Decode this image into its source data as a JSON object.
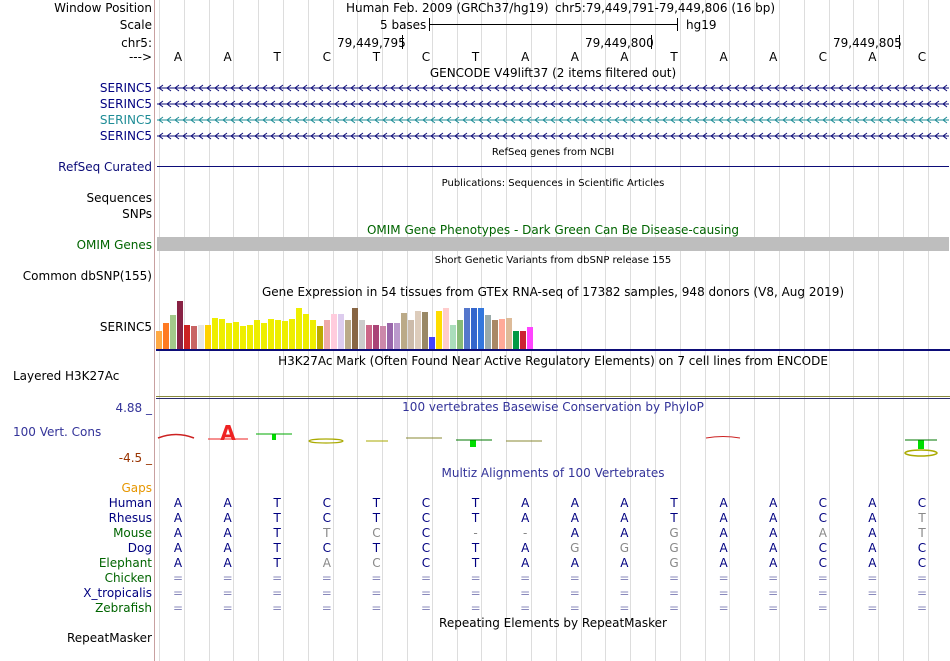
{
  "labels": {
    "window_position": "Window Position",
    "scale": "Scale",
    "chrom": "chr5:",
    "arrow": "--->",
    "serinc5_1": "SERINC5",
    "serinc5_2": "SERINC5",
    "serinc5_3": "SERINC5",
    "serinc5_4": "SERINC5",
    "refseq": "RefSeq Curated",
    "sequences": "Sequences",
    "snps": "SNPs",
    "omim": "OMIM Genes",
    "dbsnp": "Common dbSNP(155)",
    "gtex": "SERINC5",
    "h3k27ac": "Layered H3K27Ac",
    "cons_max": "4.88 _",
    "cons": "100 Vert. Cons",
    "cons_min": "-4.5 _",
    "gaps": "Gaps",
    "repeatmasker": "RepeatMasker"
  },
  "header": {
    "assembly": "Human Feb. 2009 (GRCh37/hg19)",
    "position": "chr5:79,449,791-79,449,806 (16 bp)",
    "scale_bases": "5 bases",
    "scale_db": "hg19",
    "coord1": "79,449,795",
    "coord2": "79,449,800",
    "coord3": "79,449,805"
  },
  "bases": [
    "A",
    "A",
    "T",
    "C",
    "T",
    "C",
    "T",
    "A",
    "A",
    "A",
    "T",
    "A",
    "A",
    "C",
    "A",
    "C"
  ],
  "track_titles": {
    "gencode": "GENCODE V49lift37 (2 items filtered out)",
    "refseq": "RefSeq genes from NCBI",
    "publications": "Publications: Sequences in Scientific Articles",
    "omim": "OMIM Gene Phenotypes - Dark Green Can Be Disease-causing",
    "dbsnp": "Short Genetic Variants from dbSNP release 155",
    "gtex": "Gene Expression in 54 tissues from GTEx RNA-seq of 17382 samples, 948 donors (V8, Aug 2019)",
    "h3k27ac": "H3K27Ac Mark (Often Found Near Active Regulatory Elements) on 7 cell lines from ENCODE",
    "phylop": "100 vertebrates Basewise Conservation by PhyloP",
    "multiz": "Multiz Alignments of 100 Vertebrates",
    "repeatmasker": "Repeating Elements by RepeatMasker"
  },
  "species": [
    {
      "name": "Human",
      "color": "#000080",
      "bases": [
        "A",
        "A",
        "T",
        "C",
        "T",
        "C",
        "T",
        "A",
        "A",
        "A",
        "T",
        "A",
        "A",
        "C",
        "A",
        "C"
      ]
    },
    {
      "name": "Rhesus",
      "color": "#000080",
      "bases": [
        "A",
        "A",
        "T",
        "C",
        "T",
        "C",
        "T",
        "A",
        "A",
        "A",
        "T",
        "A",
        "A",
        "C",
        "A",
        "T"
      ]
    },
    {
      "name": "Mouse",
      "color": "#006400",
      "bases": [
        "A",
        "A",
        "T",
        "T",
        "C",
        "C",
        "-",
        "-",
        "A",
        "A",
        "G",
        "A",
        "A",
        "A",
        "A",
        "T"
      ]
    },
    {
      "name": "Dog",
      "color": "#000080",
      "bases": [
        "A",
        "A",
        "T",
        "C",
        "T",
        "C",
        "T",
        "A",
        "G",
        "G",
        "G",
        "A",
        "A",
        "C",
        "A",
        "C"
      ]
    },
    {
      "name": "Elephant",
      "color": "#006400",
      "bases": [
        "A",
        "A",
        "T",
        "A",
        "C",
        "C",
        "T",
        "A",
        "A",
        "A",
        "G",
        "A",
        "A",
        "C",
        "A",
        "C"
      ]
    },
    {
      "name": "Chicken",
      "color": "#006400",
      "bases": [
        "=",
        "=",
        "=",
        "=",
        "=",
        "=",
        "=",
        "=",
        "=",
        "=",
        "=",
        "=",
        "=",
        "=",
        "=",
        "="
      ]
    },
    {
      "name": "X_tropicalis",
      "color": "#000080",
      "bases": [
        "=",
        "=",
        "=",
        "=",
        "=",
        "=",
        "=",
        "=",
        "=",
        "=",
        "=",
        "=",
        "=",
        "=",
        "=",
        "="
      ]
    },
    {
      "name": "Zebrafish",
      "color": "#006400",
      "bases": [
        "=",
        "=",
        "=",
        "=",
        "=",
        "=",
        "=",
        "=",
        "=",
        "=",
        "=",
        "=",
        "=",
        "=",
        "=",
        "="
      ]
    }
  ],
  "colors": {
    "track_label_blue": "#000080",
    "gencode_dark": "#0c0c78",
    "gencode_light": "#1e8c96",
    "omim_green": "#006400",
    "omim_bar": "#bebebe",
    "phylop_title": "#333399",
    "cons_max": "#333399",
    "cons_min": "#993300",
    "gaps": "#e69600"
  },
  "gtex_levels": [
    0.38,
    0.55,
    0.7,
    1.0,
    0.5,
    0.48,
    0.5,
    0.5,
    0.65,
    0.62,
    0.55,
    0.56,
    0.48,
    0.5,
    0.6,
    0.55,
    0.62,
    0.6,
    0.58,
    0.62,
    0.85,
    0.72,
    0.6,
    0.48,
    0.6,
    0.72,
    0.72,
    0.6,
    0.85,
    0.6,
    0.5,
    0.5,
    0.48,
    0.55,
    0.55,
    0.75,
    0.6,
    0.8,
    0.78,
    0.25,
    0.8,
    0.85,
    0.5,
    0.6,
    0.85,
    0.85,
    0.85,
    0.7,
    0.6,
    0.62,
    0.65,
    0.38,
    0.38,
    0.45
  ],
  "gtex_colors": [
    "#ffaa44",
    "#ff7a22",
    "#a3c98a",
    "#882244",
    "#cc2222",
    "#c86464",
    "#e6e6e6",
    "#ffd200",
    "#eeee00",
    "#eeee00",
    "#eeee00",
    "#eeee00",
    "#eeee00",
    "#eeee00",
    "#eeee00",
    "#eeee00",
    "#eeee00",
    "#eeee00",
    "#eeee00",
    "#eeee00",
    "#eeee00",
    "#eeee00",
    "#eeee00",
    "#bbaa00",
    "#eeaaaa",
    "#ffccdd",
    "#ddccee",
    "#bbaa88",
    "#886644",
    "#cccccc",
    "#cc6688",
    "#aa4477",
    "#cc88aa",
    "#9966aa",
    "#bb99cc",
    "#bbaa88",
    "#ccbbaa",
    "#ddccbb",
    "#998866",
    "#4444ff",
    "#ffdd00",
    "#ffcccc",
    "#aaddbb",
    "#88bb77",
    "#5577cc",
    "#3366cc",
    "#3377dd",
    "#99aaaa",
    "#aa8866",
    "#ffaa99",
    "#ddbb99",
    "#009944",
    "#cc2233",
    "#ff44ff"
  ]
}
